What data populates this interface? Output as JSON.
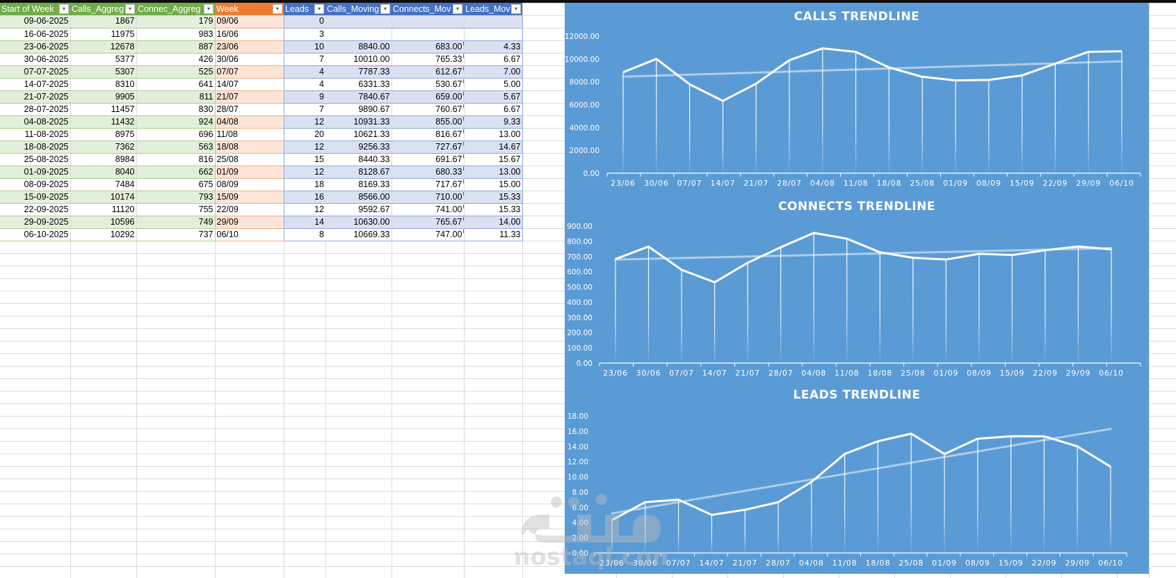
{
  "sheet": {
    "headers": [
      {
        "label": "Start of Week",
        "color": "green"
      },
      {
        "label": "Calls_Aggreg",
        "color": "green"
      },
      {
        "label": "Connec_Aggreg",
        "color": "green"
      },
      {
        "label": "Week",
        "color": "orange"
      },
      {
        "label": "Leads",
        "color": "blue"
      },
      {
        "label": "Calls_Moving",
        "color": "blue"
      },
      {
        "label": "Connects_Mov",
        "color": "blue"
      },
      {
        "label": "Leads_Mov",
        "color": "blue"
      }
    ],
    "rows": [
      [
        "09-06-2025",
        "1867",
        "179",
        "09/06",
        "0",
        "",
        "",
        ""
      ],
      [
        "16-06-2025",
        "11975",
        "983",
        "16/06",
        "3",
        "",
        "",
        ""
      ],
      [
        "23-06-2025",
        "12678",
        "887",
        "23/06",
        "10",
        "8840.00",
        "683.00",
        "4.33"
      ],
      [
        "30-06-2025",
        "5377",
        "426",
        "30/06",
        "7",
        "10010.00",
        "765.33",
        "6.67"
      ],
      [
        "07-07-2025",
        "5307",
        "525",
        "07/07",
        "4",
        "7787.33",
        "612.67",
        "7.00"
      ],
      [
        "14-07-2025",
        "8310",
        "641",
        "14/07",
        "4",
        "6331.33",
        "530.67",
        "5.00"
      ],
      [
        "21-07-2025",
        "9905",
        "811",
        "21/07",
        "9",
        "7840.67",
        "659.00",
        "5.67"
      ],
      [
        "28-07-2025",
        "11457",
        "830",
        "28/07",
        "7",
        "9890.67",
        "760.67",
        "6.67"
      ],
      [
        "04-08-2025",
        "11432",
        "924",
        "04/08",
        "12",
        "10931.33",
        "855.00",
        "9.33"
      ],
      [
        "11-08-2025",
        "8975",
        "696",
        "11/08",
        "20",
        "10621.33",
        "816.67",
        "13.00"
      ],
      [
        "18-08-2025",
        "7362",
        "563",
        "18/08",
        "12",
        "9256.33",
        "727.67",
        "14.67"
      ],
      [
        "25-08-2025",
        "8984",
        "816",
        "25/08",
        "15",
        "8440.33",
        "691.67",
        "15.67"
      ],
      [
        "01-09-2025",
        "8040",
        "662",
        "01/09",
        "12",
        "8128.67",
        "680.33",
        "13.00"
      ],
      [
        "08-09-2025",
        "7484",
        "675",
        "08/09",
        "18",
        "8169.33",
        "717.67",
        "15.00"
      ],
      [
        "15-09-2025",
        "10174",
        "793",
        "15/09",
        "16",
        "8566.00",
        "710.00",
        "15.33"
      ],
      [
        "22-09-2025",
        "11120",
        "755",
        "22/09",
        "12",
        "9592.67",
        "741.00",
        "15.33"
      ],
      [
        "29-09-2025",
        "10596",
        "749",
        "29/09",
        "14",
        "10630.00",
        "765.67",
        "14.00"
      ],
      [
        "06-10-2025",
        "10292",
        "737",
        "06/10",
        "8",
        "10669.33",
        "747.00",
        "11.33"
      ]
    ]
  },
  "colors": {
    "chart_bg": "#5b9bd5",
    "header_green": "#70ad47",
    "header_orange": "#ed7d31",
    "header_blue": "#4472c4",
    "band_green": "#e2efda",
    "band_orange": "#fce4d6",
    "band_blue": "#d9e1f2"
  },
  "watermark": {
    "text": "mostaql.com"
  },
  "chart_data": [
    {
      "type": "line",
      "title": "CALLS TRENDLINE",
      "categories": [
        "23/06",
        "30/06",
        "07/07",
        "14/07",
        "21/07",
        "28/07",
        "04/08",
        "11/08",
        "18/08",
        "25/08",
        "01/09",
        "08/09",
        "15/09",
        "22/09",
        "29/09",
        "06/10"
      ],
      "series": [
        {
          "name": "Calls_Moving",
          "values": [
            8840.0,
            10010.0,
            7787.33,
            6331.33,
            7840.67,
            9890.67,
            10931.33,
            10621.33,
            9256.33,
            8440.33,
            8128.67,
            8169.33,
            8566.0,
            9592.67,
            10630.0,
            10669.33
          ]
        }
      ],
      "trendline": {
        "type": "linear",
        "start": 8450,
        "end": 9800
      },
      "yticks": [
        "0.00",
        "2000.00",
        "4000.00",
        "6000.00",
        "8000.00",
        "10000.00",
        "12000.00"
      ],
      "ylim": [
        0,
        12000
      ],
      "xlabel": "",
      "ylabel": "",
      "grid": false,
      "legend": "none",
      "drop_lines": true
    },
    {
      "type": "line",
      "title": "CONNECTS TRENDLINE",
      "categories": [
        "23/06",
        "30/06",
        "07/07",
        "14/07",
        "21/07",
        "28/07",
        "04/08",
        "11/08",
        "18/08",
        "25/08",
        "01/09",
        "08/09",
        "15/09",
        "22/09",
        "29/09",
        "06/10"
      ],
      "series": [
        {
          "name": "Connects_Mov",
          "values": [
            683.0,
            765.33,
            612.67,
            530.67,
            659.0,
            760.67,
            855.0,
            816.67,
            727.67,
            691.67,
            680.33,
            717.67,
            710.0,
            741.0,
            765.67,
            747.0
          ]
        }
      ],
      "trendline": {
        "type": "linear",
        "start": 680,
        "end": 755
      },
      "yticks": [
        "0.00",
        "100.00",
        "200.00",
        "300.00",
        "400.00",
        "500.00",
        "600.00",
        "700.00",
        "800.00",
        "900.00"
      ],
      "ylim": [
        0,
        900
      ],
      "xlabel": "",
      "ylabel": "",
      "grid": false,
      "legend": "none",
      "drop_lines": true
    },
    {
      "type": "line",
      "title": "LEADS TRENDLINE",
      "categories": [
        "23/06",
        "30/06",
        "07/07",
        "14/07",
        "21/07",
        "28/07",
        "04/08",
        "11/08",
        "18/08",
        "25/08",
        "01/09",
        "08/09",
        "15/09",
        "22/09",
        "29/09",
        "06/10"
      ],
      "series": [
        {
          "name": "Leads_Mov",
          "values": [
            4.33,
            6.67,
            7.0,
            5.0,
            5.67,
            6.67,
            9.33,
            13.0,
            14.67,
            15.67,
            13.0,
            15.0,
            15.33,
            15.33,
            14.0,
            11.33
          ]
        }
      ],
      "trendline": {
        "type": "linear",
        "start": 5.2,
        "end": 16.3
      },
      "yticks": [
        "0.00",
        "2.00",
        "4.00",
        "6.00",
        "8.00",
        "10.00",
        "12.00",
        "14.00",
        "16.00",
        "18.00"
      ],
      "ylim": [
        0,
        18
      ],
      "xlabel": "",
      "ylabel": "",
      "grid": false,
      "legend": "none",
      "drop_lines": true
    }
  ]
}
